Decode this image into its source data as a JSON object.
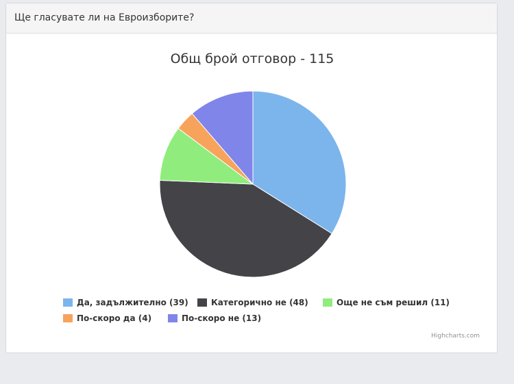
{
  "panel": {
    "title": "Ще гласувате ли на Евроизборите?"
  },
  "chart_data": {
    "type": "pie",
    "title": "Общ брой отговор - 115",
    "slices": [
      {
        "label": "Да, задължително (39)",
        "value": 39,
        "color": "#7cb5ec"
      },
      {
        "label": "Категорично не (48)",
        "value": 48,
        "color": "#434348"
      },
      {
        "label": "Още не съм решил (11)",
        "value": 11,
        "color": "#90ed7d"
      },
      {
        "label": "По-скоро да (4)",
        "value": 4,
        "color": "#f7a35c"
      },
      {
        "label": "По-скоро не (13)",
        "value": 13,
        "color": "#8085e9"
      }
    ],
    "legend_position": "bottom",
    "credits": "Highcharts.com"
  }
}
